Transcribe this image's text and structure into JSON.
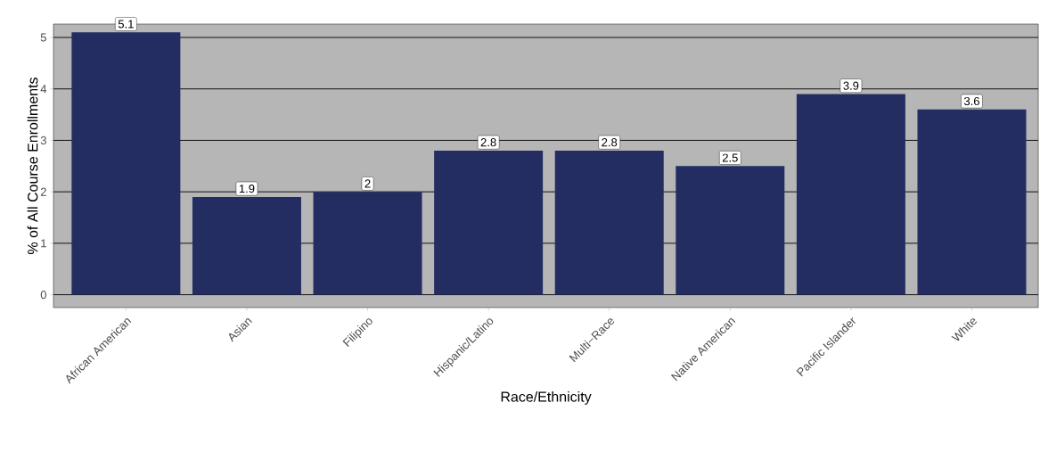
{
  "chart_data": {
    "type": "bar",
    "xlabel": "Race/Ethnicity",
    "ylabel": "% of All Course Enrollments",
    "categories": [
      "African American",
      "Asian",
      "Filipino",
      "Hispanic/Latino",
      "Multi−Race",
      "Native American",
      "Pacific Islander",
      "White"
    ],
    "values": [
      5.1,
      1.9,
      2,
      2.8,
      2.8,
      2.5,
      3.9,
      3.6
    ],
    "color": "#232d62",
    "ylim": [
      -0.25,
      5.26
    ],
    "yticks": [
      0,
      1,
      2,
      3,
      4,
      5
    ],
    "grid": "y",
    "data_labels": true
  }
}
